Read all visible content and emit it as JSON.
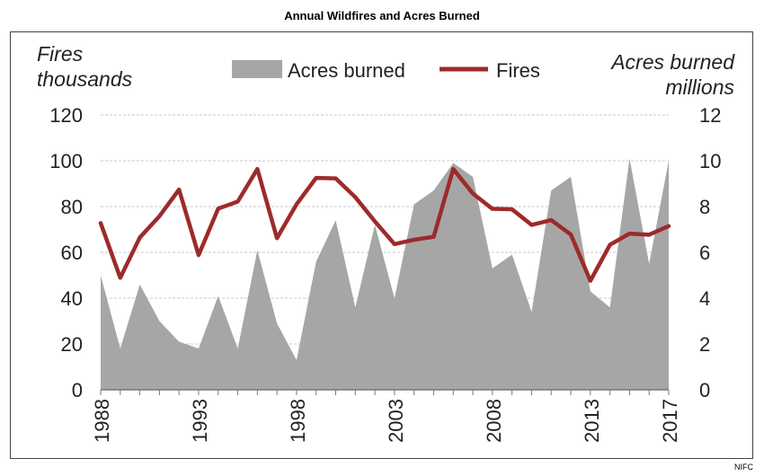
{
  "source": "NIFC",
  "chart_data": {
    "type": "line",
    "title": "Annual Wildfires and Acres Burned",
    "left_axis_label": [
      "Fires",
      "thousands"
    ],
    "right_axis_label": [
      "Acres burned",
      "millions"
    ],
    "x": [
      1988,
      1989,
      1990,
      1991,
      1992,
      1993,
      1994,
      1995,
      1996,
      1997,
      1998,
      1999,
      2000,
      2001,
      2002,
      2003,
      2004,
      2005,
      2006,
      2007,
      2008,
      2009,
      2010,
      2011,
      2012,
      2013,
      2014,
      2015,
      2016,
      2017
    ],
    "x_ticks": [
      1988,
      1993,
      1998,
      2003,
      2008,
      2013,
      2017
    ],
    "left_ylim": [
      0,
      120
    ],
    "left_yticks": [
      0,
      20,
      40,
      60,
      80,
      100,
      120
    ],
    "right_ylim": [
      0,
      12
    ],
    "right_yticks": [
      0,
      2,
      4,
      6,
      8,
      10,
      12
    ],
    "grid": true,
    "legend_position": "top",
    "series": [
      {
        "name": "Acres burned",
        "type": "area",
        "axis": "right",
        "color": "#a6a6a6",
        "values": [
          5.0,
          1.8,
          4.6,
          3.0,
          2.1,
          1.8,
          4.1,
          1.8,
          6.1,
          2.9,
          1.3,
          5.6,
          7.4,
          3.6,
          7.2,
          4.0,
          8.1,
          8.7,
          9.9,
          9.3,
          5.3,
          5.9,
          3.4,
          8.7,
          9.3,
          4.3,
          3.6,
          10.1,
          5.5,
          10.0
        ]
      },
      {
        "name": "Fires",
        "type": "line",
        "axis": "left",
        "color": "#9e2a2a",
        "values": [
          72.8,
          48.9,
          66.5,
          75.8,
          87.4,
          58.8,
          79.1,
          82.2,
          96.4,
          66.2,
          81.0,
          92.5,
          92.3,
          84.1,
          73.5,
          63.6,
          65.5,
          66.8,
          96.4,
          85.7,
          79.0,
          78.8,
          72.0,
          74.1,
          67.8,
          47.6,
          63.3,
          68.2,
          67.7,
          71.5
        ]
      }
    ]
  }
}
